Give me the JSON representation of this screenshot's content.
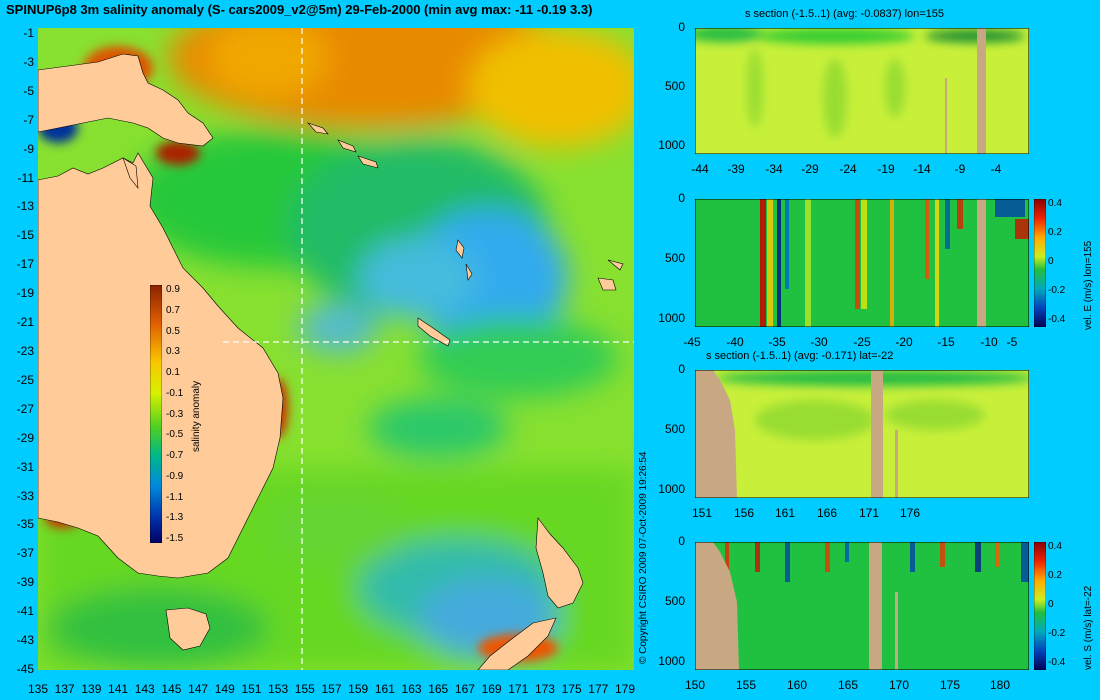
{
  "title": "SPINUP6p8 3m salinity anomaly (S- cars2009_v2@5m) 29-Feb-2000 (min avg max: -11 -0.19 3.3)",
  "map": {
    "lat_ticks": [
      "-1",
      "-3",
      "-5",
      "-7",
      "-9",
      "-11",
      "-13",
      "-15",
      "-17",
      "-19",
      "-21",
      "-23",
      "-25",
      "-27",
      "-29",
      "-31",
      "-33",
      "-35",
      "-37",
      "-39",
      "-41",
      "-43",
      "-45"
    ],
    "lon_ticks": [
      "135",
      "137",
      "139",
      "141",
      "143",
      "145",
      "147",
      "149",
      "151",
      "153",
      "155",
      "157",
      "159",
      "161",
      "163",
      "165",
      "167",
      "169",
      "171",
      "173",
      "175",
      "177",
      "179"
    ],
    "colorbar_label": "salinity anomaly",
    "colorbar_ticks": [
      "0.9",
      "0.7",
      "0.5",
      "0.3",
      "0.1",
      "-0.1",
      "-0.3",
      "-0.5",
      "-0.7",
      "-0.9",
      "-1.1",
      "-1.3",
      "-1.5"
    ],
    "section_lon": 155,
    "section_lat": -22
  },
  "panels": {
    "p1": {
      "title": "s section (-1.5..1) (avg: -0.0837) lon=155",
      "y_ticks": [
        "0",
        "500",
        "1000"
      ],
      "x_ticks": [
        "-44",
        "-39",
        "-34",
        "-29",
        "-24",
        "-19",
        "-14",
        "-9",
        "-4"
      ]
    },
    "p2": {
      "title": "",
      "y_ticks": [
        "0",
        "500",
        "1000"
      ],
      "x_ticks": [
        "-45",
        "-40",
        "-35",
        "-30",
        "-25",
        "-20",
        "-15",
        "-10",
        "-5"
      ],
      "cb_ticks": [
        "0.4",
        "0.2",
        "0",
        "-0.2",
        "-0.4"
      ],
      "cb_label": "vel. E (m/s) lon=155"
    },
    "p3": {
      "title": "s section (-1.5..1) (avg: -0.171) lat=-22",
      "y_ticks": [
        "0",
        "500",
        "1000"
      ],
      "x_ticks": [
        "151",
        "156",
        "161",
        "166",
        "171",
        "176"
      ]
    },
    "p4": {
      "title": "",
      "y_ticks": [
        "0",
        "500",
        "1000"
      ],
      "x_ticks": [
        "150",
        "155",
        "160",
        "165",
        "170",
        "175",
        "180"
      ],
      "cb_ticks": [
        "0.4",
        "0.2",
        "0",
        "-0.2",
        "-0.4"
      ],
      "cb_label": "vel. S (m/s) lat=-22"
    }
  },
  "copyright": "© Copyright CSIRO 2009   07-Oct-2009 19:26:54",
  "colors": {
    "land": "#ffcc99",
    "land_section": "#c8a882",
    "ocean_mid": "#33cc33",
    "background": "#00ccff"
  }
}
